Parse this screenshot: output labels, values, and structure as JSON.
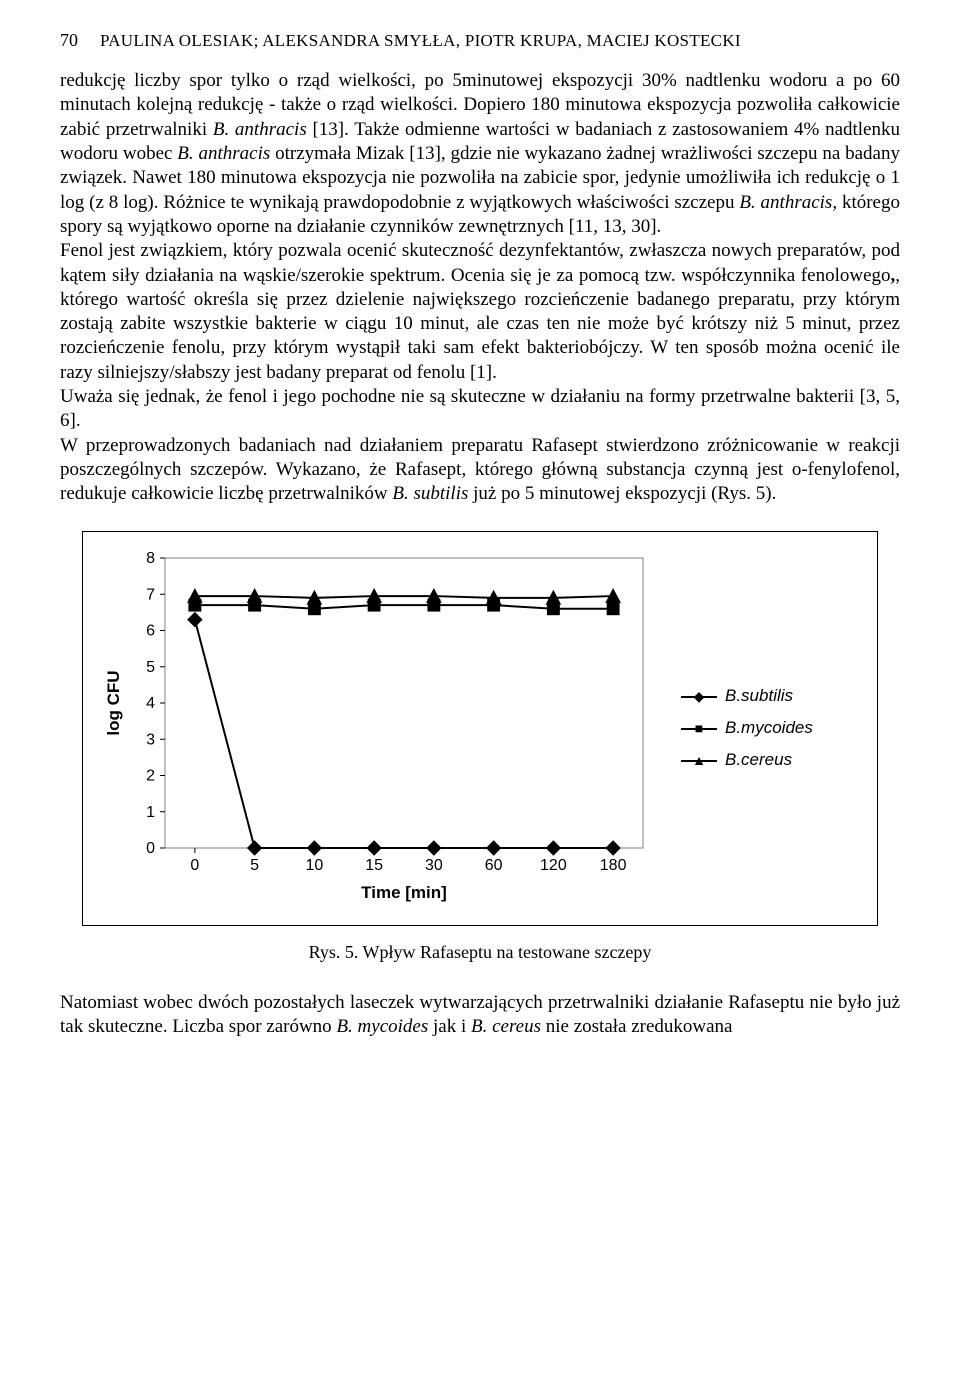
{
  "header": {
    "page_number": "70",
    "authors": "PAULINA OLESIAK; ALEKSANDRA SMYŁŁA, PIOTR KRUPA, MACIEJ KOSTECKI"
  },
  "paragraphs": {
    "p1_a": "redukcję liczby spor tylko o rząd wielkości, po 5minutowej ekspozycji 30% nadtlenku wodoru a po 60 minutach kolejną redukcję - także o rząd wielkości. Dopiero 180 minutowa ekspozycja pozwoliła całkowicie zabić przetrwalniki ",
    "p1_b": "B. anthracis",
    "p1_c": " [13]. Także odmienne wartości w badaniach z zastosowaniem 4% nadtlenku wodoru wobec ",
    "p1_d": "B. anthracis",
    "p1_e": " otrzymała Mizak [13], gdzie nie wykazano żadnej wrażliwości szczepu na badany związek. Nawet 180 minutowa ekspozycja nie pozwoliła na zabicie spor, jedynie umożliwiła ich redukcję o 1 log (z 8 log). Różnice te wynikają prawdopodobnie z wyjątkowych właściwości szczepu ",
    "p1_f": "B. anthracis",
    "p1_g": ", którego spory są wyjątkowo oporne na działanie czynników zewnętrznych [11, 13, 30].",
    "p2_a": "Fenol jest związkiem, który pozwala ocenić skuteczność dezynfektantów, zwłaszcza nowych preparatów, pod kątem siły działania na wąskie/szerokie spektrum. Ocenia się je za pomocą tzw. współczynnika fenolowego",
    "p2_b": ", którego wartość określa się przez dzielenie największego rozcieńczenie badanego preparatu, przy którym zostają zabite wszystkie bakterie w ciągu 10 minut, ale czas ten nie może być krótszy niż 5 minut, przez rozcieńczenie fenolu, przy którym wystąpił taki sam efekt bakteriobójczy. W ten sposób można ocenić ile razy silniejszy/słabszy jest badany preparat od fenolu [1].",
    "p3": "Uważa się jednak, że fenol i jego pochodne nie są skuteczne w działaniu na formy przetrwalne bakterii [3, 5, 6].",
    "p4_a": "W przeprowadzonych badaniach nad działaniem preparatu Rafasept stwierdzono zróżnicowanie w reakcji poszczególnych szczepów. Wykazano, że Rafasept, którego główną substancja czynną jest o-fenylofenol, redukuje całkowicie liczbę przetrwalników ",
    "p4_b": "B. subtilis",
    "p4_c": " już po 5 minutowej ekspozycji (Rys. 5).",
    "p5_a": "Natomiast wobec dwóch pozostałych laseczek wytwarzających przetrwalniki działanie Rafaseptu nie było już tak skuteczne. Liczba spor zarówno ",
    "p5_b": "B. mycoides",
    "p5_c": " jak i ",
    "p5_d": "B. cereus",
    "p5_e": " nie została zredukowana"
  },
  "figure": {
    "caption": "Rys. 5. Wpływ Rafaseptu na testowane szczepy",
    "chart": {
      "type": "line",
      "background_color": "#ffffff",
      "plot_border_color": "#808080",
      "axis_color": "#000000",
      "line_color": "#000000",
      "line_width": 2,
      "marker_size": 7,
      "x_label": "Time [min]",
      "y_label": "log CFU",
      "label_fontsize": 17,
      "tick_fontsize": 16,
      "x_categories": [
        "0",
        "5",
        "10",
        "15",
        "30",
        "60",
        "120",
        "180"
      ],
      "y_ticks": [
        0,
        1,
        2,
        3,
        4,
        5,
        6,
        7,
        8
      ],
      "ylim": [
        0,
        8
      ],
      "series": [
        {
          "name": "B.subtilis",
          "marker": "diamond",
          "values": [
            6.3,
            0,
            0,
            0,
            0,
            0,
            0,
            0
          ]
        },
        {
          "name": "B.mycoides",
          "marker": "square",
          "values": [
            6.7,
            6.7,
            6.6,
            6.7,
            6.7,
            6.7,
            6.6,
            6.6
          ]
        },
        {
          "name": "B.cereus",
          "marker": "triangle",
          "values": [
            6.95,
            6.95,
            6.9,
            6.95,
            6.95,
            6.9,
            6.9,
            6.95
          ]
        }
      ]
    }
  }
}
